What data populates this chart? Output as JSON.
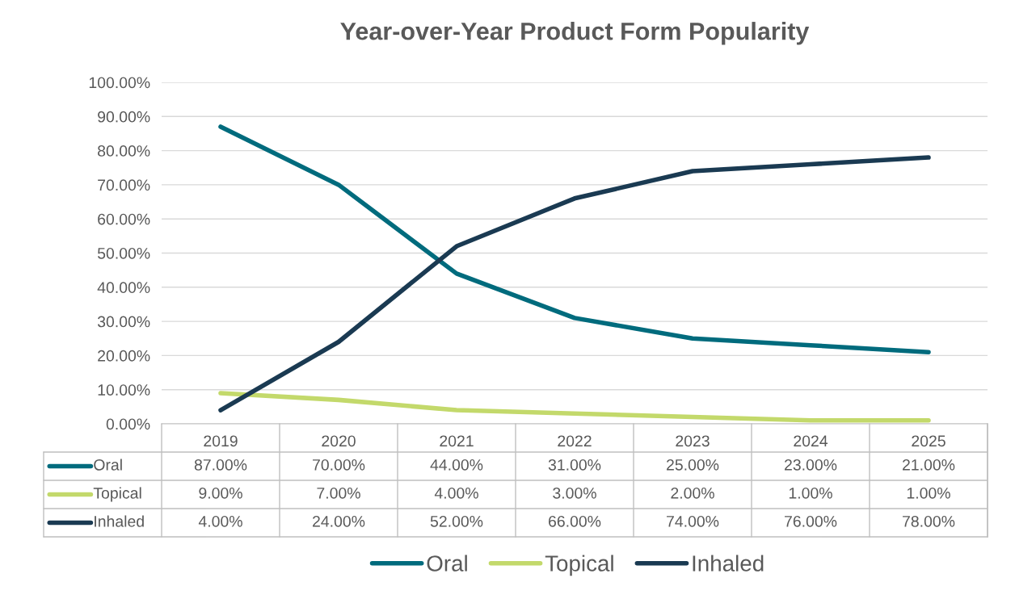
{
  "chart_data": {
    "type": "line",
    "title": "Year-over-Year Product Form Popularity",
    "categories": [
      "2019",
      "2020",
      "2021",
      "2022",
      "2023",
      "2024",
      "2025"
    ],
    "series": [
      {
        "name": "Oral",
        "color": "#006b7d",
        "values": [
          87,
          70,
          44,
          31,
          25,
          23,
          21
        ],
        "value_labels": [
          "87.00%",
          "70.00%",
          "44.00%",
          "31.00%",
          "25.00%",
          "23.00%",
          "21.00%"
        ]
      },
      {
        "name": "Topical",
        "color": "#c3d96b",
        "values": [
          9,
          7,
          4,
          3,
          2,
          1,
          1
        ],
        "value_labels": [
          "9.00%",
          "7.00%",
          "4.00%",
          "3.00%",
          "2.00%",
          "1.00%",
          "1.00%"
        ]
      },
      {
        "name": "Inhaled",
        "color": "#1a3a52",
        "values": [
          4,
          24,
          52,
          66,
          74,
          76,
          78
        ],
        "value_labels": [
          "4.00%",
          "24.00%",
          "52.00%",
          "66.00%",
          "74.00%",
          "76.00%",
          "78.00%"
        ]
      }
    ],
    "ylim": [
      0,
      100
    ],
    "yticks": [
      {
        "value": 0,
        "label": "0.00%"
      },
      {
        "value": 10,
        "label": "10.00%"
      },
      {
        "value": 20,
        "label": "20.00%"
      },
      {
        "value": 30,
        "label": "30.00%"
      },
      {
        "value": 40,
        "label": "40.00%"
      },
      {
        "value": 50,
        "label": "50.00%"
      },
      {
        "value": 60,
        "label": "60.00%"
      },
      {
        "value": 70,
        "label": "70.00%"
      },
      {
        "value": 80,
        "label": "80.00%"
      },
      {
        "value": 90,
        "label": "90.00%"
      },
      {
        "value": 100,
        "label": "100.00%"
      }
    ],
    "grid": "y",
    "legend": "bottom",
    "marker": "none",
    "line_style": "solid"
  }
}
